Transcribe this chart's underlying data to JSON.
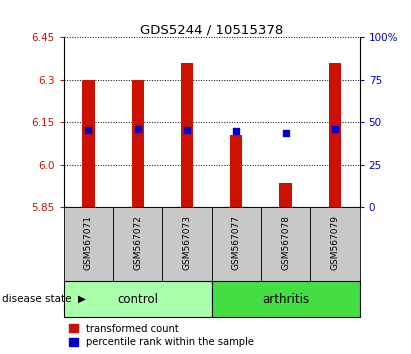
{
  "title": "GDS5244 / 10515378",
  "samples": [
    "GSM567071",
    "GSM567072",
    "GSM567073",
    "GSM567077",
    "GSM567078",
    "GSM567079"
  ],
  "group_labels": [
    "control",
    "arthritis"
  ],
  "ylim": [
    5.85,
    6.45
  ],
  "yticks": [
    5.85,
    6.0,
    6.15,
    6.3,
    6.45
  ],
  "y2ticks_right": [
    0,
    25,
    50,
    75,
    100
  ],
  "bar_bottom": 5.85,
  "bar_tops": [
    6.3,
    6.3,
    6.36,
    6.105,
    5.935,
    6.36
  ],
  "percentile_values": [
    6.122,
    6.124,
    6.122,
    6.118,
    6.112,
    6.124
  ],
  "bar_color": "#CC1100",
  "percentile_color": "#0000CC",
  "bar_width": 0.25,
  "dot_size": 18,
  "legend_red": "transformed count",
  "legend_blue": "percentile rank within the sample",
  "tick_color_left": "#CC1100",
  "tick_color_right": "#0000CC",
  "bg_color": "#C8C8C8",
  "ctrl_color": "#AAFFAA",
  "arth_color": "#44DD44"
}
